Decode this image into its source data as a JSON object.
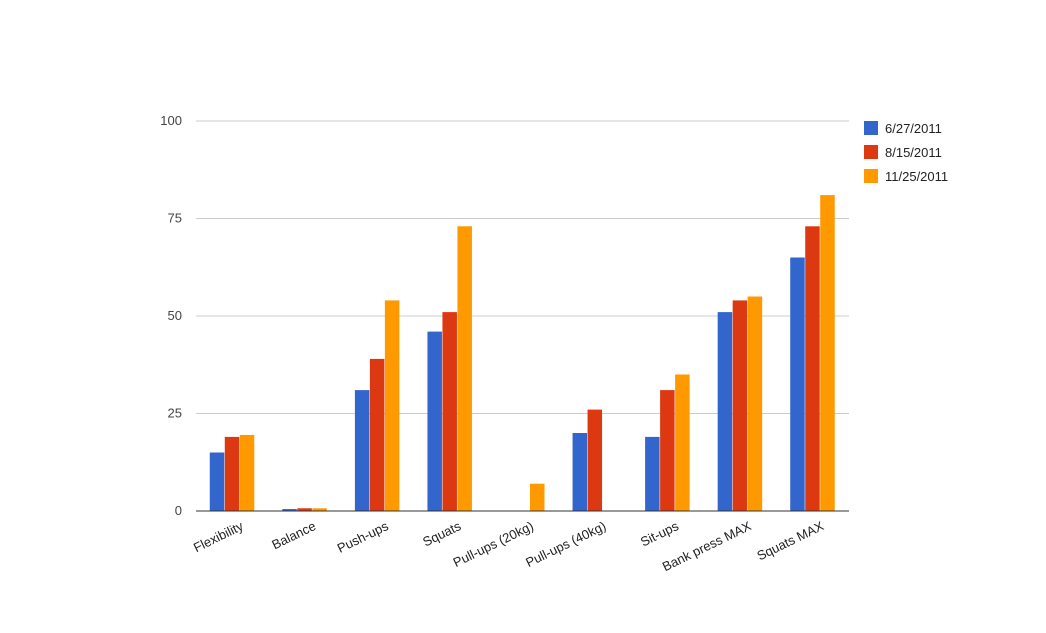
{
  "chart_data": {
    "type": "bar",
    "categories": [
      "Flexibility",
      "Balance",
      "Push-ups",
      "Squats",
      "Pull-ups (20kg)",
      "Pull-ups (40kg)",
      "Sit-ups",
      "Bank press MAX",
      "Squats MAX"
    ],
    "series": [
      {
        "name": "6/27/2011",
        "color": "#3366cc",
        "values": [
          15,
          0.5,
          31,
          46,
          0,
          20,
          19,
          51,
          65
        ]
      },
      {
        "name": "8/15/2011",
        "color": "#dc3912",
        "values": [
          19,
          0.7,
          39,
          51,
          0,
          26,
          31,
          54,
          73
        ]
      },
      {
        "name": "11/25/2011",
        "color": "#ff9900",
        "values": [
          19.5,
          0.7,
          54,
          73,
          7,
          0,
          35,
          55,
          81
        ]
      }
    ],
    "title": "",
    "xlabel": "",
    "ylabel": "",
    "ylim": [
      0,
      100
    ],
    "yticks": [
      "0",
      "25",
      "50",
      "75",
      "100"
    ],
    "ytick_values": [
      0,
      25,
      50,
      75,
      100
    ],
    "grid": true,
    "legend_position": "right"
  }
}
